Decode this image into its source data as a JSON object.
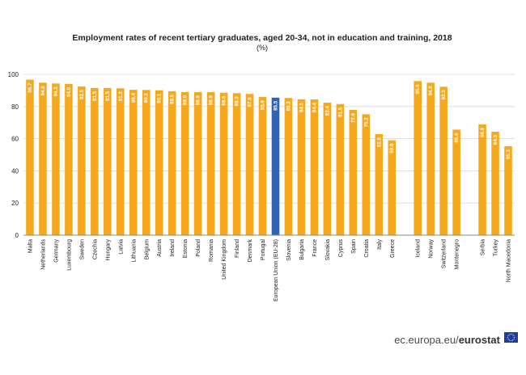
{
  "chart_data": {
    "type": "bar",
    "title": "Employment rates of recent tertiary graduates, aged 20-34, not in education and training, 2018",
    "subtitle": "(%)",
    "xlabel": "",
    "ylabel": "",
    "ylim": [
      0,
      100
    ],
    "yticks": [
      0,
      20,
      40,
      60,
      80,
      100
    ],
    "grid": true,
    "categories": [
      "Malta",
      "Netherlands",
      "Germany",
      "Luxembourg",
      "Sweden",
      "Czechia",
      "Hungary",
      "Latvia",
      "Lithuania",
      "Belgium",
      "Austria",
      "Ireland",
      "Estonia",
      "Poland",
      "Romania",
      "United Kingdom",
      "Finland",
      "Denmark",
      "Portugal",
      "European Union (EU-28)",
      "Slovenia",
      "Bulgaria",
      "France",
      "Slovakia",
      "Cyprus",
      "Spain",
      "Croatia",
      "Italy",
      "Greece",
      "",
      "Iceland",
      "Norway",
      "Switzerland",
      "Montenegro",
      "",
      "Serbia",
      "Turkey",
      "North Macedonia"
    ],
    "values": [
      96.7,
      94.8,
      94.3,
      94.0,
      92.5,
      91.5,
      91.5,
      91.3,
      90.4,
      90.3,
      90.1,
      89.5,
      89.0,
      88.9,
      88.9,
      88.6,
      88.3,
      87.8,
      85.9,
      85.5,
      85.3,
      84.5,
      84.4,
      82.4,
      81.5,
      77.9,
      75.2,
      62.8,
      59.0,
      null,
      95.8,
      94.8,
      92.3,
      65.6,
      null,
      68.9,
      64.3,
      55.3
    ],
    "value_labels": [
      "96.7",
      "94.8",
      "94.3",
      "94.0",
      "92.5",
      "91.5",
      "91.5",
      "91.3",
      "90.4",
      "90.3",
      "90.1",
      "89.5",
      "89.0",
      "88.9",
      "88.9",
      "88.6",
      "88.3",
      "87.8",
      "85.9",
      "85.5",
      "85.3",
      "84.5",
      "84.4",
      "82.4",
      "81.5",
      "77.9",
      "75.2",
      "62.8",
      "59.0",
      "",
      "95.8",
      "94.8",
      "92.3",
      "65.6",
      "",
      "68.9",
      "64.3",
      "55.3"
    ],
    "highlight": "European Union (EU-28)",
    "colors": {
      "bar": "#f6a81c",
      "highlight": "#2f64b4",
      "grid": "#d8d8d8",
      "axis": "#888888"
    }
  },
  "footer": {
    "source_prefix": "ec.europa.eu/",
    "source_brand": "eurostat",
    "flag_icon": "eu-flag-icon",
    "flag_color": "#1f3f99",
    "star_color": "#ffdd00"
  }
}
